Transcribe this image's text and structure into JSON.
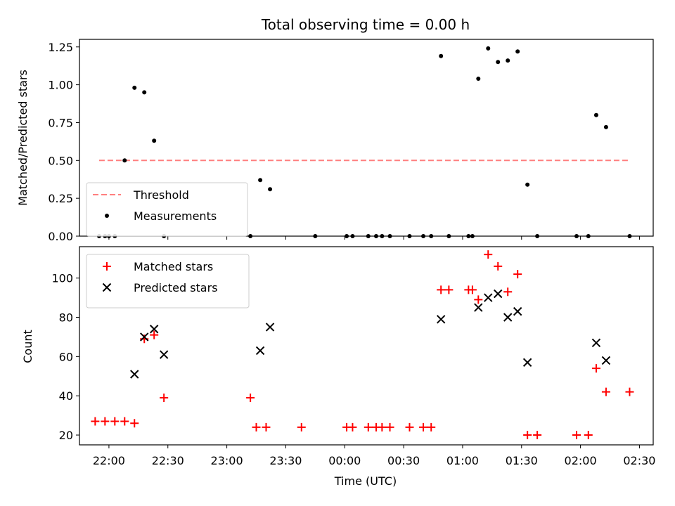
{
  "chart_data": [
    {
      "type": "scatter",
      "title": "Total observing time = 0.00 h",
      "xlabel": "",
      "ylabel": "Matched/Predicted stars",
      "x_range": [
        "21:45",
        "02:37"
      ],
      "ylim": [
        0,
        1.3
      ],
      "yticks": [
        0.0,
        0.25,
        0.5,
        0.75,
        1.0,
        1.25
      ],
      "ytick_labels": [
        "0.00",
        "0.25",
        "0.50",
        "0.75",
        "1.00",
        "1.25"
      ],
      "grid": false,
      "legend_position": "lower-left",
      "threshold": {
        "name": "Threshold",
        "y": 0.5,
        "x_start": "21:55",
        "x_end": "02:25",
        "color": "#ff7f7f",
        "style": "dashed"
      },
      "series": [
        {
          "name": "Measurements",
          "color": "#000000",
          "marker": "dot",
          "x": [
            "21:55",
            "21:58",
            "22:00",
            "22:03",
            "22:08",
            "22:13",
            "22:18",
            "22:23",
            "22:28",
            "23:12",
            "23:17",
            "23:22",
            "23:45",
            "00:01",
            "00:04",
            "00:12",
            "00:16",
            "00:19",
            "00:23",
            "00:33",
            "00:40",
            "00:44",
            "00:49",
            "00:53",
            "01:03",
            "01:05",
            "01:08",
            "01:13",
            "01:18",
            "01:23",
            "01:28",
            "01:33",
            "01:38",
            "01:58",
            "02:04",
            "02:08",
            "02:13",
            "02:25"
          ],
          "y": [
            0,
            0,
            0,
            0,
            0.5,
            0.98,
            0.95,
            0.63,
            0,
            0,
            0.37,
            0.31,
            0,
            0,
            0,
            0,
            0,
            0,
            0,
            0,
            0,
            0,
            1.19,
            0,
            0,
            0,
            1.04,
            1.24,
            1.15,
            1.16,
            1.22,
            0.34,
            0,
            0,
            0,
            0.8,
            0.72,
            0
          ]
        }
      ]
    },
    {
      "type": "scatter",
      "title": "",
      "xlabel": "Time (UTC)",
      "ylabel": "Count",
      "x_range": [
        "21:45",
        "02:37"
      ],
      "xticks": [
        "22:00",
        "22:30",
        "23:00",
        "23:30",
        "00:00",
        "00:30",
        "01:00",
        "01:30",
        "02:00",
        "02:30"
      ],
      "ylim": [
        15,
        116
      ],
      "yticks": [
        20,
        40,
        60,
        80,
        100
      ],
      "ytick_labels": [
        "20",
        "40",
        "60",
        "80",
        "100"
      ],
      "grid": false,
      "legend_position": "top-left",
      "series": [
        {
          "name": "Matched stars",
          "color": "#ff0000",
          "marker": "plus",
          "x": [
            "21:53",
            "21:58",
            "22:03",
            "22:08",
            "22:13",
            "22:18",
            "22:23",
            "22:28",
            "23:12",
            "23:15",
            "23:20",
            "23:38",
            "00:01",
            "00:04",
            "00:12",
            "00:16",
            "00:19",
            "00:23",
            "00:33",
            "00:40",
            "00:44",
            "00:49",
            "00:53",
            "01:03",
            "01:05",
            "01:08",
            "01:13",
            "01:18",
            "01:23",
            "01:28",
            "01:33",
            "01:38",
            "01:58",
            "02:04",
            "02:08",
            "02:13",
            "02:25"
          ],
          "y": [
            27,
            27,
            27,
            27,
            26,
            69,
            71,
            39,
            39,
            24,
            24,
            24,
            24,
            24,
            24,
            24,
            24,
            24,
            24,
            24,
            24,
            94,
            94,
            94,
            94,
            89,
            112,
            106,
            93,
            102,
            20,
            20,
            20,
            20,
            54,
            42,
            42
          ]
        },
        {
          "name": "Predicted stars",
          "color": "#000000",
          "marker": "x",
          "x": [
            "22:13",
            "22:18",
            "22:23",
            "22:28",
            "23:17",
            "23:22",
            "00:49",
            "01:08",
            "01:13",
            "01:18",
            "01:23",
            "01:28",
            "01:33",
            "02:08",
            "02:13"
          ],
          "y": [
            51,
            70,
            74,
            61,
            63,
            75,
            79,
            85,
            90,
            92,
            80,
            83,
            57,
            67,
            58
          ]
        }
      ]
    }
  ]
}
